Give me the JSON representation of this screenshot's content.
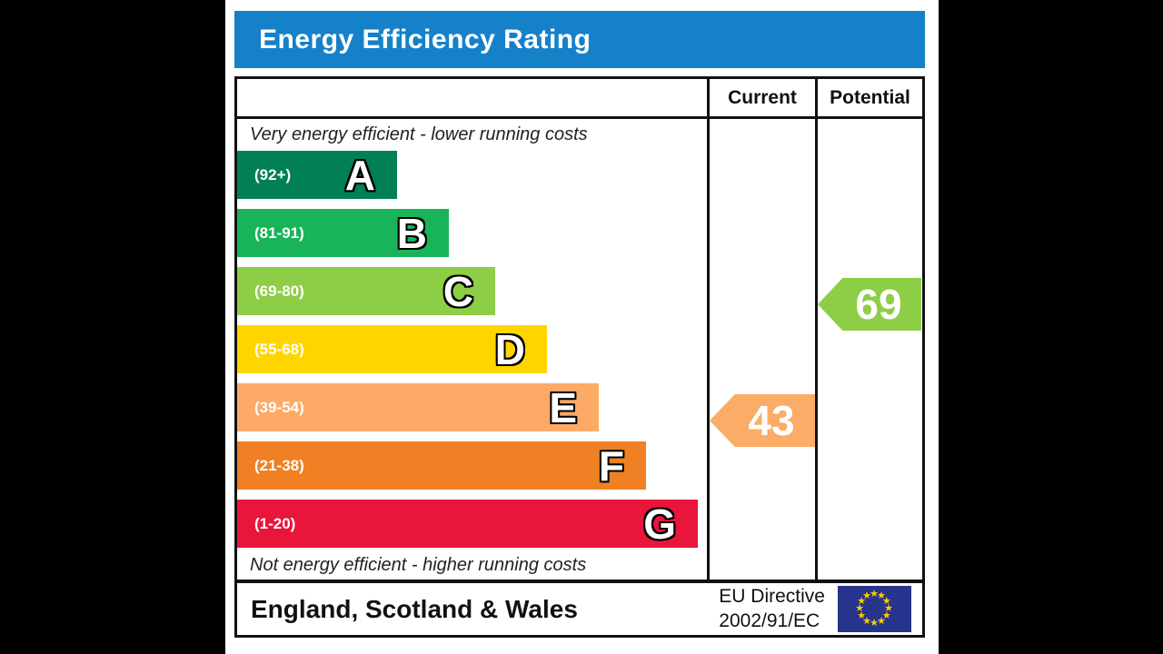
{
  "title": "Energy Efficiency Rating",
  "header": {
    "current_label": "Current",
    "potential_label": "Potential"
  },
  "colors": {
    "banner_blue": "#1581c8",
    "border_black": "#111111",
    "text_white": "#ffffff"
  },
  "chart_data": {
    "type": "bar",
    "title": "Energy Efficiency Rating",
    "annotations": {
      "top": "Very energy efficient - lower running costs",
      "bottom": "Not energy efficient - higher running costs"
    },
    "bands": [
      {
        "letter": "A",
        "range_label": "(92+)",
        "min": 92,
        "max": 100,
        "color": "#008054",
        "bar_width_pct": 34
      },
      {
        "letter": "B",
        "range_label": "(81-91)",
        "min": 81,
        "max": 91,
        "color": "#19b459",
        "bar_width_pct": 45
      },
      {
        "letter": "C",
        "range_label": "(69-80)",
        "min": 69,
        "max": 80,
        "color": "#8dce46",
        "bar_width_pct": 55
      },
      {
        "letter": "D",
        "range_label": "(55-68)",
        "min": 55,
        "max": 68,
        "color": "#ffd500",
        "bar_width_pct": 66
      },
      {
        "letter": "E",
        "range_label": "(39-54)",
        "min": 39,
        "max": 54,
        "color": "#fcaa65",
        "bar_width_pct": 77
      },
      {
        "letter": "F",
        "range_label": "(21-38)",
        "min": 21,
        "max": 38,
        "color": "#ef8023",
        "bar_width_pct": 87
      },
      {
        "letter": "G",
        "range_label": "(1-20)",
        "min": 1,
        "max": 20,
        "color": "#e9153b",
        "bar_width_pct": 98
      }
    ],
    "markers": {
      "current": {
        "value": 43,
        "band": "E",
        "color": "#fbac66"
      },
      "potential": {
        "value": 69,
        "band": "C",
        "color": "#8dce46"
      }
    }
  },
  "footer": {
    "region": "England, Scotland & Wales",
    "directive_line1": "EU Directive",
    "directive_line2": "2002/91/EC",
    "eu_flag": {
      "background": "#27348b",
      "star_color": "#ffcc00"
    }
  }
}
